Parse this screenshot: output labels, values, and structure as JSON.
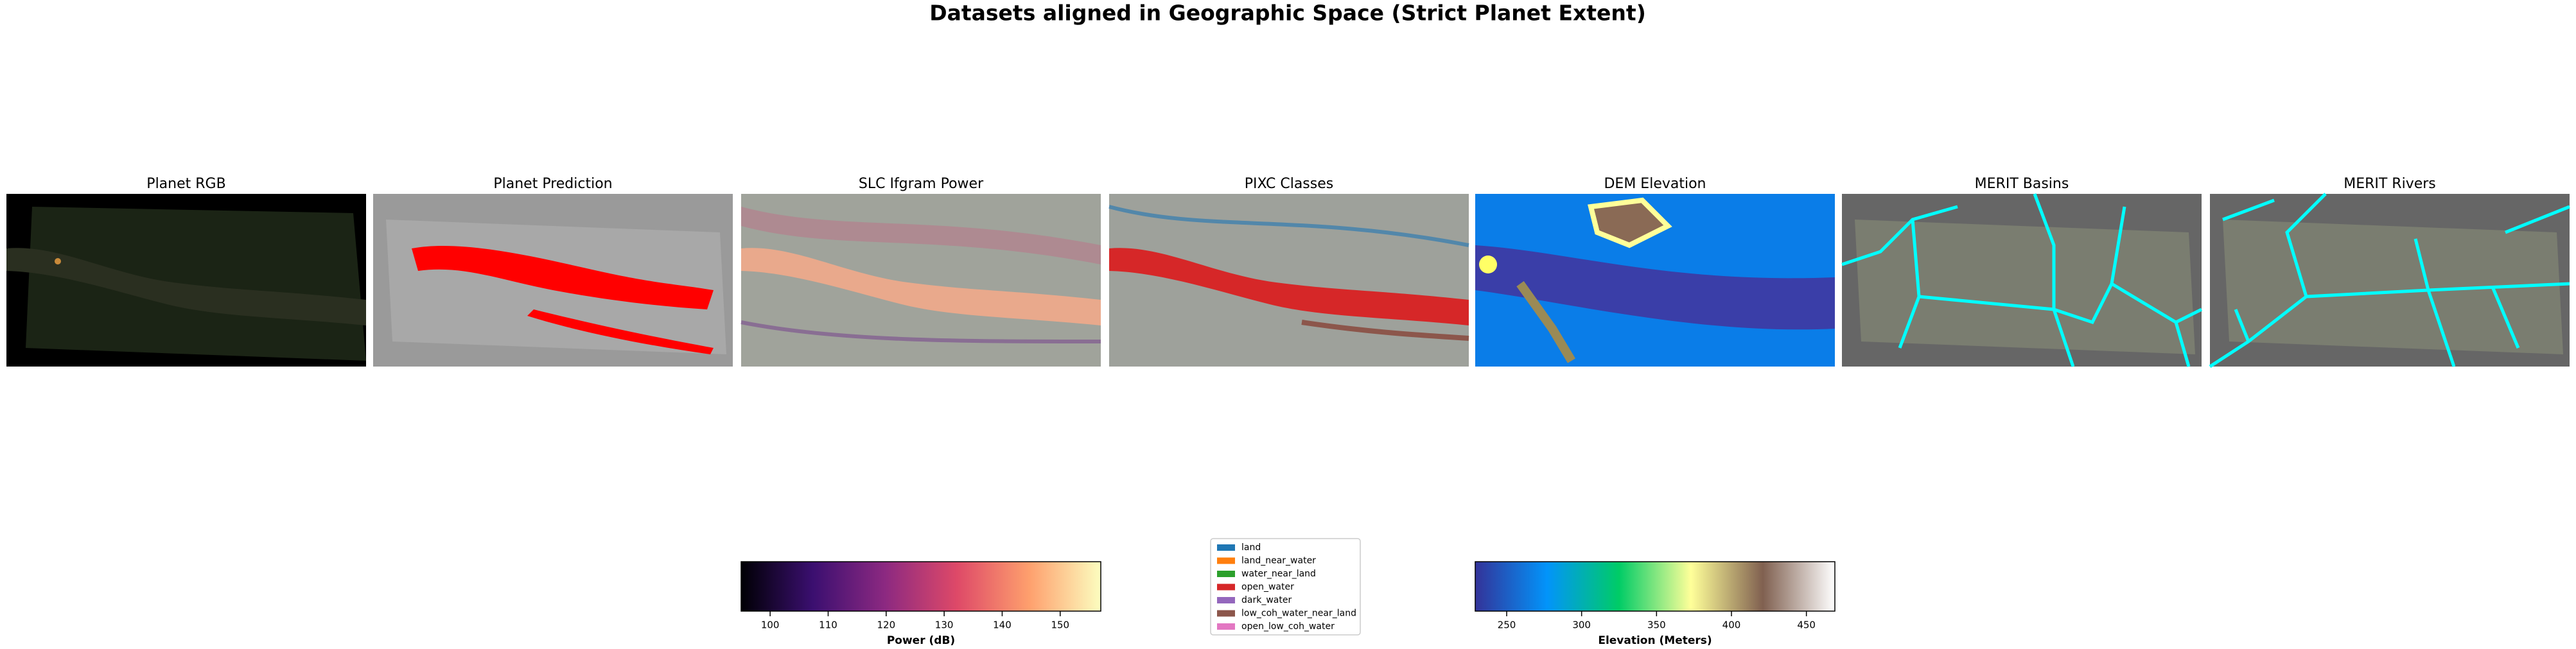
{
  "title": "Datasets aligned in Geographic Space (Strict Planet Extent)",
  "panels": [
    {
      "title": "Planet RGB"
    },
    {
      "title": "Planet Prediction"
    },
    {
      "title": "SLC Ifgram Power"
    },
    {
      "title": "PIXC Classes"
    },
    {
      "title": "DEM Elevation"
    },
    {
      "title": "MERIT Basins"
    },
    {
      "title": "MERIT Rivers"
    }
  ],
  "colorbars": [
    {
      "label": "Power (dB)",
      "xlim": [
        95,
        157
      ],
      "xticks": [
        100,
        110,
        120,
        130,
        140,
        150
      ],
      "colors": [
        "#000004",
        "#3b0f70",
        "#8c2981",
        "#de4968",
        "#fe9f6d",
        "#fcfdbf"
      ]
    },
    {
      "label": "Elevation (Meters)",
      "xlim": [
        229,
        469
      ],
      "xticks": [
        250,
        300,
        350,
        400,
        450
      ],
      "colors": [
        "#333399",
        "#0294fa",
        "#00cc66",
        "#ffff99",
        "#806050",
        "#ffffff"
      ]
    }
  ],
  "legend": {
    "entries": [
      {
        "label": "land",
        "color": "#1f77b4"
      },
      {
        "label": "land_near_water",
        "color": "#ff7f0e"
      },
      {
        "label": "water_near_land",
        "color": "#2ca02c"
      },
      {
        "label": "open_water",
        "color": "#d62728"
      },
      {
        "label": "dark_water",
        "color": "#9467bd"
      },
      {
        "label": "low_coh_water_near_land",
        "color": "#8c564b"
      },
      {
        "label": "open_low_coh_water",
        "color": "#e377c2"
      }
    ]
  }
}
